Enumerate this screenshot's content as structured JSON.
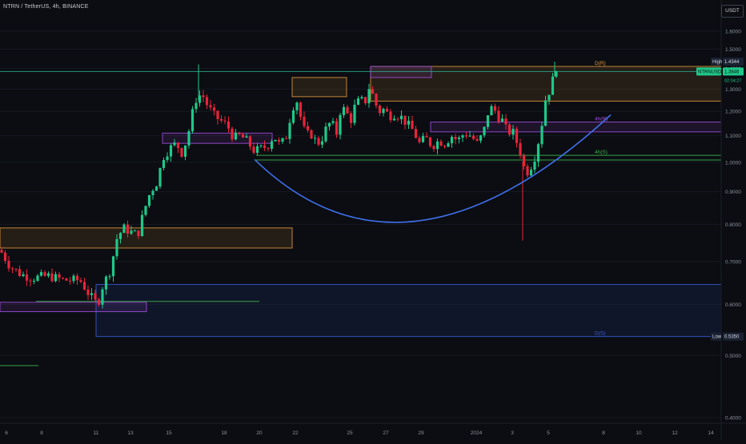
{
  "header": {
    "symbol_line": "NTRN / TetherUS, 4h, BINANCE",
    "currency_button": "USDT"
  },
  "theme": {
    "background": "#0b0d12",
    "up": "#1ec98a",
    "down": "#e8243a",
    "arc": "#3f6ee8",
    "orange": "#e39a3c",
    "purple": "#a34ee0",
    "green": "#3cb44b",
    "blue": "#3a5bd9",
    "teal": "#2aa68a"
  },
  "chart_data": {
    "type": "candlestick",
    "y_axis": {
      "min": 0.4,
      "max": 1.7,
      "scale": "log",
      "tick_labels": [
        "1.6000",
        "1.5000",
        "1.4000",
        "1.3000",
        "1.2000",
        "1.1000",
        "1.0000",
        "0.9000",
        "0.8000",
        "0.7000",
        "0.6000",
        "0.5000",
        "0.4000"
      ],
      "tick_values": [
        1.6,
        1.5,
        1.4,
        1.3,
        1.2,
        1.1,
        1.0,
        0.9,
        0.8,
        0.7,
        0.6,
        0.5,
        0.4
      ]
    },
    "x_axis": {
      "index_range": [
        0,
        300
      ],
      "tick_labels": [
        "6",
        "8",
        "11",
        "13",
        "15",
        "18",
        "20",
        "22",
        "25",
        "27",
        "29",
        "2024",
        "3",
        "5",
        "8",
        "10",
        "12",
        "14"
      ],
      "tick_index": [
        8,
        52,
        120,
        163,
        211,
        280,
        324,
        369,
        437,
        482,
        526,
        595,
        640,
        685,
        754,
        798,
        843,
        888
      ]
    },
    "price_labels": [
      {
        "name": "high",
        "tag": "High",
        "value": "1.4344",
        "price": 1.4344
      },
      {
        "name": "last",
        "tag": "NTRNUSDT",
        "value": "1.3846",
        "countdown": "02:04:27",
        "price": 1.3846
      },
      {
        "name": "low",
        "tag": "Low",
        "value": "0.5350",
        "price": 0.535
      }
    ],
    "zones": [
      {
        "x1": 0,
        "x2": 365,
        "top": 0.79,
        "bottom": 0.735,
        "color": "orange"
      },
      {
        "x1": 463,
        "x2": 901,
        "top": 1.41,
        "bottom": 1.245,
        "color": "orange"
      },
      {
        "x1": 365,
        "x2": 433,
        "top": 1.355,
        "bottom": 1.265,
        "color": "orange"
      },
      {
        "x1": 463,
        "x2": 539,
        "top": 1.41,
        "bottom": 1.355,
        "color": "purple"
      },
      {
        "x1": 203,
        "x2": 340,
        "top": 1.11,
        "bottom": 1.07,
        "color": "purple"
      },
      {
        "x1": 538,
        "x2": 901,
        "top": 1.155,
        "bottom": 1.115,
        "color": "purple"
      },
      {
        "x1": 120,
        "x2": 901,
        "top": 0.645,
        "bottom": 0.535,
        "color": "blue"
      },
      {
        "x1": 0,
        "x2": 183,
        "top": 0.605,
        "bottom": 0.585,
        "color": "purple"
      }
    ],
    "hlines": [
      {
        "x1": 0,
        "x2": 901,
        "price": 1.3846,
        "color": "teal",
        "dash": false
      },
      {
        "x1": 320,
        "x2": 901,
        "price": 1.025,
        "color": "green"
      },
      {
        "x1": 320,
        "x2": 901,
        "price": 1.008,
        "color": "green"
      },
      {
        "x1": 45,
        "x2": 324,
        "price": 0.607,
        "color": "green"
      },
      {
        "x1": 0,
        "x2": 48,
        "price": 0.482,
        "color": "green"
      }
    ],
    "zone_labels": [
      {
        "text": "D(R)",
        "x": 743,
        "price": 1.41,
        "color": "orange"
      },
      {
        "text": "4h(R)",
        "x": 743,
        "price": 1.155,
        "color": "purple"
      },
      {
        "text": "4h(S)",
        "x": 743,
        "price": 1.025,
        "color": "green"
      },
      {
        "text": "D(S)",
        "x": 743,
        "price": 0.535,
        "color": "blue"
      }
    ],
    "arc": {
      "start": [
        318,
        1.01
      ],
      "control": [
        505,
        0.6
      ],
      "end": [
        763,
        1.185
      ]
    },
    "price_path": [
      [
        0,
        0.73
      ],
      [
        12,
        0.69
      ],
      [
        25,
        0.67
      ],
      [
        40,
        0.66
      ],
      [
        60,
        0.665
      ],
      [
        80,
        0.655
      ],
      [
        100,
        0.655
      ],
      [
        112,
        0.62
      ],
      [
        122,
        0.6
      ],
      [
        128,
        0.64
      ],
      [
        138,
        0.68
      ],
      [
        146,
        0.76
      ],
      [
        154,
        0.79
      ],
      [
        162,
        0.78
      ],
      [
        172,
        0.77
      ],
      [
        180,
        0.84
      ],
      [
        188,
        0.9
      ],
      [
        196,
        0.93
      ],
      [
        204,
        1.02
      ],
      [
        212,
        1.05
      ],
      [
        220,
        1.07
      ],
      [
        228,
        1.03
      ],
      [
        236,
        1.12
      ],
      [
        244,
        1.25
      ],
      [
        252,
        1.28
      ],
      [
        260,
        1.22
      ],
      [
        268,
        1.18
      ],
      [
        276,
        1.16
      ],
      [
        284,
        1.14
      ],
      [
        292,
        1.09
      ],
      [
        300,
        1.1
      ],
      [
        308,
        1.08
      ],
      [
        318,
        1.04
      ],
      [
        326,
        1.05
      ],
      [
        334,
        1.06
      ],
      [
        342,
        1.1
      ],
      [
        350,
        1.06
      ],
      [
        358,
        1.1
      ],
      [
        364,
        1.2
      ],
      [
        370,
        1.26
      ],
      [
        376,
        1.17
      ],
      [
        382,
        1.1
      ],
      [
        388,
        1.11
      ],
      [
        394,
        1.08
      ],
      [
        400,
        1.07
      ],
      [
        406,
        1.12
      ],
      [
        414,
        1.16
      ],
      [
        420,
        1.1
      ],
      [
        426,
        1.22
      ],
      [
        432,
        1.2
      ],
      [
        438,
        1.16
      ],
      [
        444,
        1.23
      ],
      [
        450,
        1.25
      ],
      [
        456,
        1.24
      ],
      [
        462,
        1.32
      ],
      [
        468,
        1.24
      ],
      [
        474,
        1.2
      ],
      [
        480,
        1.21
      ],
      [
        486,
        1.18
      ],
      [
        492,
        1.19
      ],
      [
        500,
        1.18
      ],
      [
        508,
        1.15
      ],
      [
        516,
        1.12
      ],
      [
        524,
        1.07
      ],
      [
        532,
        1.09
      ],
      [
        540,
        1.06
      ],
      [
        548,
        1.08
      ],
      [
        556,
        1.07
      ],
      [
        564,
        1.1
      ],
      [
        572,
        1.08
      ],
      [
        580,
        1.11
      ],
      [
        588,
        1.1
      ],
      [
        596,
        1.07
      ],
      [
        604,
        1.11
      ],
      [
        610,
        1.2
      ],
      [
        616,
        1.22
      ],
      [
        622,
        1.18
      ],
      [
        628,
        1.16
      ],
      [
        634,
        1.11
      ],
      [
        640,
        1.12
      ],
      [
        646,
        1.07
      ],
      [
        652,
        1.02
      ],
      [
        656,
        0.96
      ],
      [
        660,
        0.97
      ],
      [
        664,
        0.99
      ],
      [
        668,
        1.02
      ],
      [
        672,
        1.07
      ],
      [
        676,
        1.12
      ],
      [
        680,
        1.24
      ],
      [
        686,
        1.29
      ],
      [
        692,
        1.36
      ],
      [
        696,
        1.3846
      ]
    ]
  }
}
